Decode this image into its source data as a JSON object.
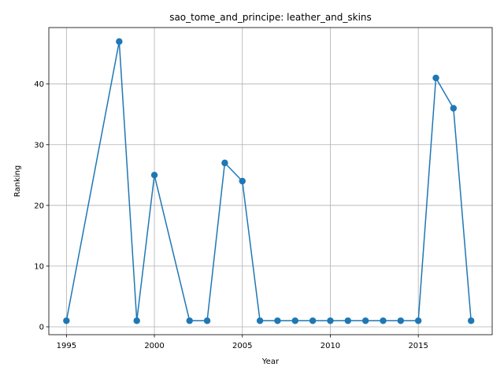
{
  "chart_data": {
    "type": "line",
    "title": "sao_tome_and_principe: leather_and_skins",
    "xlabel": "Year",
    "ylabel": "Ranking",
    "xlim": [
      1994,
      2019.2
    ],
    "ylim": [
      -1.3,
      49.3
    ],
    "xticks": [
      1995,
      2000,
      2005,
      2010,
      2015
    ],
    "yticks": [
      0,
      10,
      20,
      30,
      40
    ],
    "grid": true,
    "series": [
      {
        "color": "#1f77b4",
        "marker": "circle",
        "points": [
          {
            "x": 1995,
            "y": 1
          },
          {
            "x": 1998,
            "y": 47
          },
          {
            "x": 1999,
            "y": 1
          },
          {
            "x": 2000,
            "y": 25
          },
          {
            "x": 2002,
            "y": 1
          },
          {
            "x": 2003,
            "y": 1
          },
          {
            "x": 2004,
            "y": 27
          },
          {
            "x": 2005,
            "y": 24
          },
          {
            "x": 2006,
            "y": 1
          },
          {
            "x": 2007,
            "y": 1
          },
          {
            "x": 2008,
            "y": 1
          },
          {
            "x": 2009,
            "y": 1
          },
          {
            "x": 2010,
            "y": 1
          },
          {
            "x": 2011,
            "y": 1
          },
          {
            "x": 2012,
            "y": 1
          },
          {
            "x": 2013,
            "y": 1
          },
          {
            "x": 2014,
            "y": 1
          },
          {
            "x": 2015,
            "y": 1
          },
          {
            "x": 2016,
            "y": 41
          },
          {
            "x": 2017,
            "y": 36
          },
          {
            "x": 2018,
            "y": 1
          }
        ]
      }
    ]
  }
}
